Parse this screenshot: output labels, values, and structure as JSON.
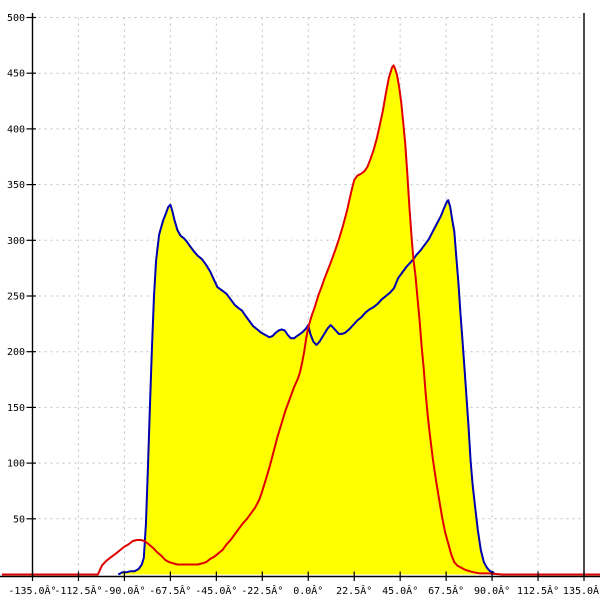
{
  "chart_data": {
    "type": "area",
    "title": "",
    "xlabel": "",
    "ylabel": "",
    "xlim": [
      -135,
      135
    ],
    "ylim": [
      0,
      500
    ],
    "grid": true,
    "legend_position": "none",
    "x_tick_values": [
      -135,
      -112.5,
      -90,
      -67.5,
      -45,
      -22.5,
      0,
      22.5,
      45,
      67.5,
      90,
      112.5,
      135
    ],
    "x_tick_labels": [
      "-135.0Â°",
      "-112.5Â°",
      "-90.0Â°",
      "-67.5Â°",
      "-45.0Â°",
      "-22.5Â°",
      "0.0Â°",
      "22.5Â°",
      "45.0Â°",
      "67.5Â°",
      "90.0Â°",
      "112.5Â°",
      "135.0Â°"
    ],
    "y_tick_values": [
      50,
      100,
      150,
      200,
      250,
      300,
      350,
      400,
      450,
      500
    ],
    "y_tick_labels": [
      "50",
      "100",
      "150",
      "200",
      "250",
      "300",
      "350",
      "400",
      "450",
      "500"
    ],
    "colors": {
      "blue_line": "#0000b0",
      "red_line": "#e00000",
      "fill": "#ffff00",
      "grid": "#c0c0c0",
      "axis": "#000000",
      "background": "#ffffff"
    },
    "fill_rule": "area under upper envelope of blue and red curves, bounded by blue where blue is near zero",
    "series": [
      {
        "name": "blue-curve",
        "color_key": "blue_line",
        "points": [
          [
            -93,
            0
          ],
          [
            -91,
            2
          ],
          [
            -89,
            2
          ],
          [
            -87,
            3
          ],
          [
            -85,
            3
          ],
          [
            -83,
            5
          ],
          [
            -81.5,
            9
          ],
          [
            -80.5,
            15
          ],
          [
            -79.5,
            45
          ],
          [
            -78.5,
            95
          ],
          [
            -77.5,
            150
          ],
          [
            -76.5,
            205
          ],
          [
            -75.5,
            250
          ],
          [
            -74.5,
            282
          ],
          [
            -73,
            305
          ],
          [
            -71,
            318
          ],
          [
            -69.5,
            325
          ],
          [
            -68.5,
            330
          ],
          [
            -67.5,
            332
          ],
          [
            -66.5,
            326
          ],
          [
            -65.5,
            318
          ],
          [
            -64,
            309
          ],
          [
            -62.5,
            304
          ],
          [
            -61,
            302
          ],
          [
            -59.5,
            299
          ],
          [
            -58,
            295
          ],
          [
            -56,
            290
          ],
          [
            -54,
            286
          ],
          [
            -52,
            283
          ],
          [
            -50,
            278
          ],
          [
            -48,
            272
          ],
          [
            -46,
            264
          ],
          [
            -44.5,
            258
          ],
          [
            -43,
            256
          ],
          [
            -41.5,
            254
          ],
          [
            -40,
            252
          ],
          [
            -38,
            247
          ],
          [
            -36,
            242
          ],
          [
            -34,
            239
          ],
          [
            -32.5,
            237
          ],
          [
            -31,
            233
          ],
          [
            -29,
            228
          ],
          [
            -27,
            223
          ],
          [
            -25,
            220
          ],
          [
            -23,
            217
          ],
          [
            -21,
            215
          ],
          [
            -19,
            213
          ],
          [
            -17.5,
            214
          ],
          [
            -16,
            217
          ],
          [
            -14.5,
            219
          ],
          [
            -13,
            220
          ],
          [
            -11.5,
            219
          ],
          [
            -10,
            215
          ],
          [
            -8.5,
            212
          ],
          [
            -7,
            212
          ],
          [
            -5.5,
            214
          ],
          [
            -4,
            216
          ],
          [
            -2.5,
            218
          ],
          [
            -1,
            221
          ],
          [
            0,
            224
          ],
          [
            1,
            216
          ],
          [
            2.5,
            209
          ],
          [
            4,
            206
          ],
          [
            5.5,
            209
          ],
          [
            7.5,
            215
          ],
          [
            9.5,
            221
          ],
          [
            11,
            224
          ],
          [
            13,
            220
          ],
          [
            15,
            216
          ],
          [
            16.5,
            216
          ],
          [
            18,
            217
          ],
          [
            20,
            220
          ],
          [
            22,
            224
          ],
          [
            24,
            228
          ],
          [
            26,
            231
          ],
          [
            28,
            235
          ],
          [
            30,
            238
          ],
          [
            32,
            240
          ],
          [
            34,
            243
          ],
          [
            36,
            247
          ],
          [
            38,
            250
          ],
          [
            40,
            253
          ],
          [
            42,
            257
          ],
          [
            44,
            266
          ],
          [
            46,
            271
          ],
          [
            48,
            276
          ],
          [
            50,
            280
          ],
          [
            51.5,
            283
          ],
          [
            53,
            287
          ],
          [
            55,
            291
          ],
          [
            57,
            296
          ],
          [
            59,
            301
          ],
          [
            61,
            308
          ],
          [
            63,
            315
          ],
          [
            65,
            322
          ],
          [
            66.5,
            329
          ],
          [
            68,
            335
          ],
          [
            68.5,
            336
          ],
          [
            69.5,
            330
          ],
          [
            70.5,
            318
          ],
          [
            71.5,
            308
          ],
          [
            72.5,
            285
          ],
          [
            73.5,
            262
          ],
          [
            74.5,
            235
          ],
          [
            75.5,
            210
          ],
          [
            76.5,
            185
          ],
          [
            77.5,
            158
          ],
          [
            78.5,
            132
          ],
          [
            79.5,
            102
          ],
          [
            80.5,
            80
          ],
          [
            81.5,
            64
          ],
          [
            83,
            40
          ],
          [
            84.5,
            22
          ],
          [
            86,
            11
          ],
          [
            87.5,
            6
          ],
          [
            89,
            3
          ],
          [
            90.5,
            2
          ],
          [
            91.5,
            0
          ]
        ]
      },
      {
        "name": "red-curve",
        "color_key": "red_line",
        "points": [
          [
            -150,
            0
          ],
          [
            -103,
            0
          ],
          [
            -101,
            8
          ],
          [
            -99,
            12
          ],
          [
            -97,
            15
          ],
          [
            -94,
            19
          ],
          [
            -92,
            22
          ],
          [
            -90,
            25
          ],
          [
            -88,
            27
          ],
          [
            -86,
            30
          ],
          [
            -84,
            31
          ],
          [
            -82,
            31
          ],
          [
            -80,
            30
          ],
          [
            -78,
            27
          ],
          [
            -76,
            24
          ],
          [
            -74,
            20
          ],
          [
            -72,
            17
          ],
          [
            -70,
            13
          ],
          [
            -68,
            11
          ],
          [
            -66,
            10
          ],
          [
            -64,
            9
          ],
          [
            -60,
            9
          ],
          [
            -56,
            9
          ],
          [
            -54,
            9
          ],
          [
            -52,
            10
          ],
          [
            -50,
            11
          ],
          [
            -48,
            14
          ],
          [
            -46,
            16
          ],
          [
            -44,
            19
          ],
          [
            -42,
            22
          ],
          [
            -40,
            27
          ],
          [
            -38,
            31
          ],
          [
            -36,
            36
          ],
          [
            -34,
            41
          ],
          [
            -32,
            46
          ],
          [
            -30,
            50
          ],
          [
            -28,
            55
          ],
          [
            -26,
            60
          ],
          [
            -24,
            67
          ],
          [
            -22.5,
            75
          ],
          [
            -21,
            84
          ],
          [
            -19,
            96
          ],
          [
            -17,
            110
          ],
          [
            -15,
            124
          ],
          [
            -13,
            136
          ],
          [
            -11,
            148
          ],
          [
            -9,
            158
          ],
          [
            -7,
            168
          ],
          [
            -5,
            176
          ],
          [
            -4,
            182
          ],
          [
            -3,
            190
          ],
          [
            -2,
            200
          ],
          [
            -1,
            212
          ],
          [
            0,
            222
          ],
          [
            1,
            228
          ],
          [
            2,
            234
          ],
          [
            3,
            239
          ],
          [
            4,
            245
          ],
          [
            5,
            251
          ],
          [
            6.5,
            258
          ],
          [
            8,
            266
          ],
          [
            9.5,
            273
          ],
          [
            11,
            280
          ],
          [
            13,
            290
          ],
          [
            15,
            301
          ],
          [
            17,
            313
          ],
          [
            19,
            327
          ],
          [
            21,
            343
          ],
          [
            22.5,
            354
          ],
          [
            24,
            358
          ],
          [
            26,
            360
          ],
          [
            27.5,
            362
          ],
          [
            29,
            366
          ],
          [
            30.5,
            373
          ],
          [
            32,
            381
          ],
          [
            33.5,
            391
          ],
          [
            35,
            403
          ],
          [
            36.5,
            416
          ],
          [
            38,
            432
          ],
          [
            39.5,
            446
          ],
          [
            41,
            455
          ],
          [
            41.8,
            457
          ],
          [
            42.5,
            454
          ],
          [
            43.5,
            448
          ],
          [
            44.5,
            438
          ],
          [
            45.5,
            424
          ],
          [
            46.5,
            406
          ],
          [
            47.5,
            386
          ],
          [
            48.5,
            360
          ],
          [
            49.5,
            330
          ],
          [
            50.5,
            305
          ],
          [
            51.5,
            283
          ],
          [
            52.5,
            268
          ],
          [
            53.5,
            248
          ],
          [
            54.5,
            228
          ],
          [
            55.5,
            205
          ],
          [
            56.5,
            185
          ],
          [
            57.5,
            162
          ],
          [
            58.5,
            143
          ],
          [
            59.5,
            126
          ],
          [
            61,
            104
          ],
          [
            62.5,
            85
          ],
          [
            64,
            68
          ],
          [
            65.5,
            52
          ],
          [
            67,
            38
          ],
          [
            68.5,
            28
          ],
          [
            70,
            18
          ],
          [
            71.5,
            11
          ],
          [
            73,
            8
          ],
          [
            75,
            6
          ],
          [
            77,
            4
          ],
          [
            79,
            3
          ],
          [
            81,
            2
          ],
          [
            84,
            1
          ],
          [
            88,
            1
          ],
          [
            95,
            0
          ],
          [
            143,
            0
          ]
        ]
      }
    ]
  }
}
